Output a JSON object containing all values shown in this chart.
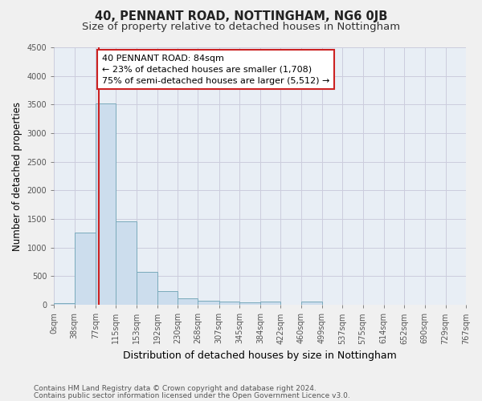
{
  "title": "40, PENNANT ROAD, NOTTINGHAM, NG6 0JB",
  "subtitle": "Size of property relative to detached houses in Nottingham",
  "xlabel": "Distribution of detached houses by size in Nottingham",
  "ylabel": "Number of detached properties",
  "bin_labels": [
    "0sqm",
    "38sqm",
    "77sqm",
    "115sqm",
    "153sqm",
    "192sqm",
    "230sqm",
    "268sqm",
    "307sqm",
    "345sqm",
    "384sqm",
    "422sqm",
    "460sqm",
    "499sqm",
    "537sqm",
    "575sqm",
    "614sqm",
    "652sqm",
    "690sqm",
    "729sqm",
    "767sqm"
  ],
  "bin_left": [
    0,
    38,
    77,
    115,
    153,
    192,
    230,
    268,
    307,
    345,
    384,
    422,
    460,
    499,
    537,
    575,
    614,
    652,
    690,
    729
  ],
  "bin_widths": [
    38,
    39,
    38,
    38,
    39,
    38,
    38,
    39,
    38,
    39,
    38,
    38,
    39,
    38,
    38,
    39,
    38,
    38,
    39,
    38
  ],
  "bar_heights": [
    30,
    1270,
    3520,
    1460,
    580,
    240,
    110,
    75,
    55,
    40,
    55,
    0,
    55,
    0,
    0,
    0,
    0,
    0,
    0,
    0
  ],
  "bar_color": "#ccdded",
  "bar_edge_color": "#7aaabb",
  "grid_color": "#ccccdd",
  "background_color": "#e8eef5",
  "fig_background_color": "#f0f0f0",
  "annotation_box_facecolor": "#ffffff",
  "annotation_box_edgecolor": "#cc2222",
  "property_line_color": "#cc2222",
  "property_line_x": 84,
  "annotation_text_line1": "40 PENNANT ROAD: 84sqm",
  "annotation_text_line2": "← 23% of detached houses are smaller (1,708)",
  "annotation_text_line3": "75% of semi-detached houses are larger (5,512) →",
  "ylim": [
    0,
    4500
  ],
  "yticks": [
    0,
    500,
    1000,
    1500,
    2000,
    2500,
    3000,
    3500,
    4000,
    4500
  ],
  "xlim_left": 0,
  "xlim_right": 767,
  "title_fontsize": 10.5,
  "subtitle_fontsize": 9.5,
  "annotation_fontsize": 8,
  "ylabel_fontsize": 8.5,
  "xlabel_fontsize": 9,
  "tick_fontsize": 7,
  "footer_fontsize": 6.5,
  "footer_line1": "Contains HM Land Registry data © Crown copyright and database right 2024.",
  "footer_line2": "Contains public sector information licensed under the Open Government Licence v3.0."
}
